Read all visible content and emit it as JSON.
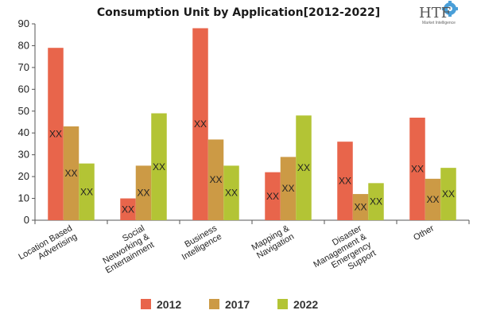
{
  "chart_data": {
    "type": "bar",
    "title": "Consumption Unit by  Application[2012-2022]",
    "categories": [
      [
        "Location Based",
        "Advertising"
      ],
      [
        "Social",
        "Networking &",
        "Entertainment"
      ],
      [
        "Business",
        "Intelligence"
      ],
      [
        "Mapping &",
        "Navigation"
      ],
      [
        "Disaster",
        "Management &",
        "Emergency",
        "Support"
      ],
      [
        "Other"
      ]
    ],
    "series": [
      {
        "name": "2012",
        "color": "#e8654b",
        "values": [
          79,
          10,
          88,
          22,
          36,
          47
        ]
      },
      {
        "name": "2017",
        "color": "#cc9a45",
        "values": [
          43,
          25,
          37,
          29,
          12,
          19
        ]
      },
      {
        "name": "2022",
        "color": "#b3c435",
        "values": [
          26,
          49,
          25,
          48,
          17,
          24
        ]
      }
    ],
    "data_label": "XX",
    "ylim": [
      0,
      90
    ],
    "yticks": [
      0,
      10,
      20,
      30,
      40,
      50,
      60,
      70,
      80,
      90
    ],
    "grid": false,
    "legend": "bottom"
  },
  "logo": {
    "mark": "HTF",
    "tagline": "Market Intelligence"
  }
}
